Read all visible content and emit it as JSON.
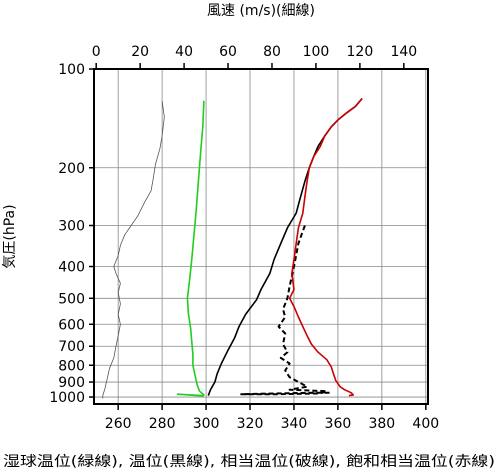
{
  "chart_data": {
    "type": "line",
    "top_axis": {
      "label": "風速 (m/s)(細線)",
      "ticks": [
        0,
        20,
        40,
        60,
        80,
        100,
        120,
        140
      ],
      "range": [
        -1,
        151
      ]
    },
    "bottom_axis": {
      "label": "湿球温位(緑線), 温位(黒線), 相当温位(破線), 飽和相当温位(赤線)",
      "ticks": [
        260,
        280,
        300,
        320,
        340,
        360,
        380,
        400
      ],
      "range": [
        249,
        401
      ]
    },
    "y_axis": {
      "label": "気圧(hPa)",
      "scale": "log",
      "reversed": true,
      "ticks": [
        100,
        200,
        300,
        400,
        500,
        600,
        700,
        800,
        900,
        1000
      ],
      "range": [
        100,
        1050
      ]
    },
    "grid": true,
    "series": [
      {
        "name": "",
        "axis": "top",
        "color": "#555555",
        "style": "thin",
        "points": [
          [
            30,
            125
          ],
          [
            31,
            140
          ],
          [
            30,
            160
          ],
          [
            29,
            175
          ],
          [
            27,
            195
          ],
          [
            26,
            215
          ],
          [
            25,
            235
          ],
          [
            22,
            255
          ],
          [
            19,
            280
          ],
          [
            13,
            320
          ],
          [
            11,
            345
          ],
          [
            10,
            370
          ],
          [
            8,
            400
          ],
          [
            9,
            420
          ],
          [
            11,
            450
          ],
          [
            10,
            480
          ],
          [
            11,
            520
          ],
          [
            10,
            560
          ],
          [
            11,
            600
          ],
          [
            10,
            650
          ],
          [
            9,
            700
          ],
          [
            8,
            760
          ],
          [
            6,
            820
          ],
          [
            5,
            880
          ],
          [
            4,
            940
          ],
          [
            3,
            990
          ],
          [
            3,
            1010
          ]
        ]
      },
      {
        "name": "",
        "axis": "bottom",
        "color": "#22cc22",
        "style": "solid",
        "points": [
          [
            299,
            125
          ],
          [
            298.5,
            150
          ],
          [
            297.5,
            180
          ],
          [
            296.5,
            220
          ],
          [
            295.5,
            270
          ],
          [
            294.5,
            320
          ],
          [
            293.5,
            380
          ],
          [
            292.5,
            440
          ],
          [
            291.5,
            500
          ],
          [
            292,
            560
          ],
          [
            293,
            620
          ],
          [
            293.5,
            680
          ],
          [
            294,
            740
          ],
          [
            294,
            800
          ],
          [
            295,
            860
          ],
          [
            296,
            920
          ],
          [
            297,
            960
          ],
          [
            299,
            985
          ],
          [
            298,
            990
          ],
          [
            287,
            980
          ],
          [
            292,
            985
          ],
          [
            296,
            990
          ],
          [
            299,
            992
          ]
        ]
      },
      {
        "name": "",
        "axis": "bottom",
        "color": "#000000",
        "style": "solid",
        "points": [
          [
            371,
            123
          ],
          [
            368,
            130
          ],
          [
            364,
            136
          ],
          [
            360,
            143
          ],
          [
            357,
            150
          ],
          [
            354,
            160
          ],
          [
            351,
            172
          ],
          [
            349,
            185
          ],
          [
            347,
            200
          ],
          [
            345,
            220
          ],
          [
            343,
            245
          ],
          [
            341,
            275
          ],
          [
            337,
            305
          ],
          [
            334,
            340
          ],
          [
            331,
            380
          ],
          [
            329,
            420
          ],
          [
            325,
            470
          ],
          [
            323,
            505
          ],
          [
            318,
            560
          ],
          [
            315,
            610
          ],
          [
            313,
            660
          ],
          [
            310,
            720
          ],
          [
            307,
            790
          ],
          [
            305,
            850
          ],
          [
            304,
            900
          ],
          [
            302,
            950
          ],
          [
            301,
            990
          ]
        ]
      },
      {
        "name": "",
        "axis": "bottom",
        "color": "#000000",
        "style": "dashed",
        "points": [
          [
            345,
            300
          ],
          [
            342,
            340
          ],
          [
            340,
            400
          ],
          [
            338,
            460
          ],
          [
            337,
            500
          ],
          [
            335,
            540
          ],
          [
            336,
            570
          ],
          [
            333,
            610
          ],
          [
            336,
            640
          ],
          [
            335,
            690
          ],
          [
            337,
            730
          ],
          [
            334,
            760
          ],
          [
            338,
            790
          ],
          [
            336,
            830
          ],
          [
            338,
            870
          ],
          [
            346,
            930
          ],
          [
            338,
            950
          ],
          [
            355,
            960
          ],
          [
            352,
            975
          ],
          [
            333,
            980
          ],
          [
            316,
            980
          ],
          [
            333,
            975
          ],
          [
            350,
            970
          ],
          [
            357,
            970
          ]
        ]
      },
      {
        "name": "",
        "axis": "bottom",
        "color": "#cc0000",
        "style": "solid",
        "points": [
          [
            371,
            123
          ],
          [
            368,
            130
          ],
          [
            364,
            136
          ],
          [
            360,
            143
          ],
          [
            357,
            150
          ],
          [
            354,
            160
          ],
          [
            352,
            172
          ],
          [
            349,
            185
          ],
          [
            347,
            200
          ],
          [
            346,
            220
          ],
          [
            345,
            245
          ],
          [
            344,
            275
          ],
          [
            342,
            305
          ],
          [
            341,
            340
          ],
          [
            340,
            380
          ],
          [
            339,
            420
          ],
          [
            340,
            470
          ],
          [
            338,
            500
          ],
          [
            340,
            530
          ],
          [
            342,
            570
          ],
          [
            344,
            610
          ],
          [
            346,
            650
          ],
          [
            348,
            690
          ],
          [
            351,
            730
          ],
          [
            355,
            770
          ],
          [
            357,
            810
          ],
          [
            358,
            850
          ],
          [
            359,
            890
          ],
          [
            361,
            930
          ],
          [
            363,
            950
          ],
          [
            366,
            970
          ],
          [
            367,
            985
          ],
          [
            365,
            990
          ]
        ]
      }
    ]
  }
}
